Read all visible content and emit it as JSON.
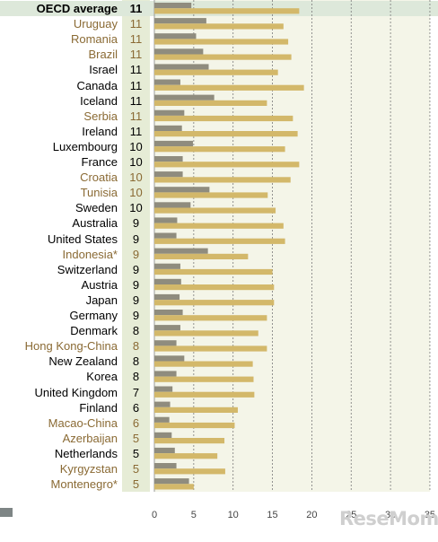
{
  "chart_data": {
    "type": "bar",
    "orientation": "horizontal",
    "categories": [
      "OECD average",
      "Uruguay",
      "Romania",
      "Brazil",
      "Israel",
      "Canada",
      "Iceland",
      "Serbia",
      "Ireland",
      "Luxembourg",
      "France",
      "Croatia",
      "Tunisia",
      "Sweden",
      "Australia",
      "United States",
      "Indonesia*",
      "Switzerland",
      "Austria",
      "Japan",
      "Germany",
      "Denmark",
      "Hong Kong-China",
      "New Zealand",
      "Korea",
      "United Kingdom",
      "Finland",
      "Macao-China",
      "Azerbaijan",
      "Netherlands",
      "Kyrgyzstan",
      "Montenegro*"
    ],
    "row_values": [
      "11",
      "11",
      "11",
      "11",
      "11",
      "11",
      "11",
      "11",
      "11",
      "10",
      "10",
      "10",
      "10",
      "10",
      "9",
      "9",
      "9",
      "9",
      "9",
      "9",
      "9",
      "8",
      "8",
      "8",
      "8",
      "7",
      "6",
      "6",
      "5",
      "5",
      "5",
      "5"
    ],
    "partner_country": [
      false,
      true,
      true,
      true,
      false,
      false,
      false,
      true,
      false,
      false,
      false,
      true,
      true,
      false,
      false,
      false,
      true,
      false,
      false,
      false,
      false,
      false,
      true,
      false,
      false,
      false,
      false,
      true,
      true,
      false,
      true,
      true
    ],
    "series": [
      {
        "values": [
          4.7,
          6.6,
          5.3,
          6.2,
          6.9,
          3.3,
          7.6,
          3.8,
          3.5,
          4.9,
          3.6,
          3.6,
          7.0,
          4.6,
          2.9,
          2.8,
          6.8,
          3.3,
          3.4,
          3.2,
          3.6,
          3.3,
          2.8,
          3.8,
          2.8,
          2.3,
          2.0,
          1.9,
          2.2,
          2.6,
          2.8,
          4.4
        ],
        "color": "#8f8c7e"
      },
      {
        "values": [
          18.4,
          16.4,
          17.0,
          17.4,
          15.7,
          19.0,
          14.3,
          17.6,
          18.2,
          16.6,
          18.4,
          17.3,
          14.4,
          15.4,
          16.4,
          16.6,
          11.9,
          15.0,
          15.2,
          15.2,
          14.3,
          13.2,
          14.3,
          12.5,
          12.6,
          12.7,
          10.6,
          10.2,
          8.9,
          8.0,
          9.0,
          5.0
        ],
        "color": "#d3b86a"
      }
    ],
    "xlim": [
      0,
      35
    ],
    "xticks": [
      "0",
      "5",
      "10",
      "15",
      "20",
      "25",
      "30",
      "35"
    ],
    "grid": "vertical dashed",
    "watermark": "ReseMom"
  }
}
